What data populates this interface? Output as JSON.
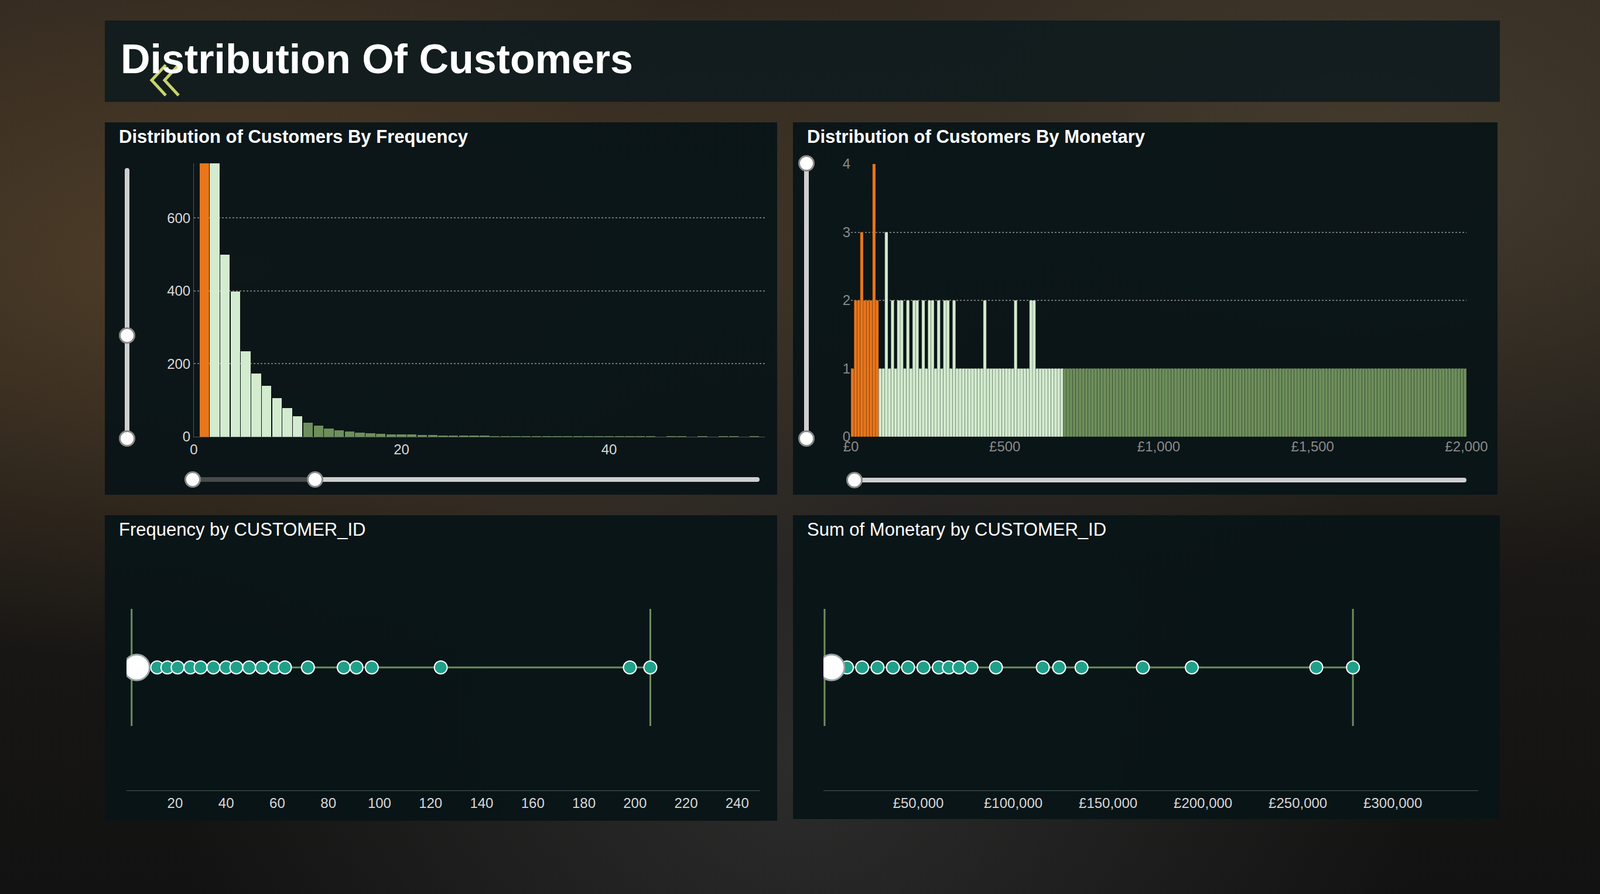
{
  "title": "Distribution Of Customers",
  "chart_data": [
    {
      "type": "bar",
      "title": "Distribution of Customers By Frequency",
      "xlim": [
        0,
        55
      ],
      "xticks": [
        0,
        20,
        40
      ],
      "ylim": [
        0,
        750
      ],
      "yticks": [
        0,
        200,
        400,
        600
      ],
      "grid": true,
      "series": [
        {
          "color": "#e8761c",
          "x": [
            1
          ],
          "values": [
            750
          ]
        },
        {
          "color": "#d3ebcf",
          "x": [
            2,
            3,
            4,
            5,
            6,
            7,
            8,
            9,
            10
          ],
          "values": [
            750,
            500,
            399,
            234,
            173,
            140,
            106,
            78,
            56
          ]
        },
        {
          "color": "#6e8f5c",
          "x": [
            11,
            12,
            13,
            14,
            15,
            16,
            17,
            18,
            19,
            20,
            21,
            22,
            23,
            24,
            25,
            26,
            27,
            28,
            29,
            30,
            31,
            32,
            33,
            34,
            35,
            36,
            37,
            38,
            39,
            40,
            41,
            42,
            43,
            44,
            45,
            46,
            47,
            48,
            49,
            50,
            51,
            52,
            53,
            54
          ],
          "values": [
            39,
            30,
            22,
            17,
            14,
            12,
            10,
            8,
            7,
            7,
            6,
            5,
            5,
            4,
            4,
            3,
            3,
            3,
            2,
            2,
            2,
            2,
            2,
            1,
            2,
            1,
            1,
            2,
            1,
            1,
            1,
            1,
            1,
            1,
            0,
            1,
            1,
            0,
            1,
            0,
            1,
            1,
            0,
            1
          ]
        }
      ]
    },
    {
      "type": "bar",
      "title": "Distribution of Customers By Monetary",
      "xlim": [
        0,
        2000
      ],
      "xticks": [
        {
          "value": 0,
          "label": "£0"
        },
        {
          "value": 500,
          "label": "£500"
        },
        {
          "value": 1000,
          "label": "£1,000"
        },
        {
          "value": 1500,
          "label": "£1,500"
        },
        {
          "value": 2000,
          "label": "£2,000"
        }
      ],
      "ylim": [
        0,
        4
      ],
      "yticks": [
        0,
        1,
        2,
        3,
        4
      ],
      "grid": true,
      "series": [
        {
          "color": "#e8761c",
          "x": [
            5,
            15,
            25,
            35,
            45,
            55,
            65,
            75,
            85
          ],
          "values": [
            1,
            2,
            2,
            3,
            2,
            2,
            2,
            4,
            2
          ]
        },
        {
          "color": "#d3ebcf",
          "x": [
            95,
            105,
            115,
            125,
            135,
            145,
            155,
            165,
            175,
            185,
            195,
            205,
            215,
            225,
            235,
            245,
            255,
            265,
            275,
            285,
            295,
            305,
            315,
            325,
            335,
            345,
            355,
            365,
            375,
            385,
            395,
            405,
            415,
            425,
            435,
            445,
            455,
            465,
            475,
            485,
            495,
            505,
            515,
            525,
            535,
            545,
            555,
            565,
            575,
            585,
            595,
            605,
            615,
            625,
            635,
            645,
            655,
            665,
            675,
            685
          ],
          "values": [
            1,
            1,
            3,
            1,
            2,
            1,
            2,
            2,
            1,
            2,
            1,
            2,
            2,
            1,
            2,
            1,
            2,
            2,
            1,
            2,
            1,
            2,
            2,
            1,
            2,
            1,
            1,
            1,
            1,
            1,
            1,
            1,
            1,
            1,
            2,
            1,
            1,
            1,
            1,
            1,
            1,
            1,
            1,
            1,
            2,
            1,
            1,
            1,
            1,
            2,
            2,
            1,
            1,
            1,
            1,
            1,
            1,
            1,
            1,
            1
          ]
        },
        {
          "color": "#6e8f5c",
          "x": [
            695,
            705,
            715,
            725,
            735,
            745,
            755,
            765,
            775,
            785,
            795,
            805,
            815,
            825,
            835,
            845,
            855,
            865,
            875,
            885,
            895,
            905,
            915,
            925,
            935,
            945,
            955,
            965,
            975,
            985,
            995,
            1005,
            1015,
            1025,
            1035,
            1045,
            1055,
            1065,
            1075,
            1085,
            1095,
            1105,
            1115,
            1125,
            1135,
            1145,
            1155,
            1165,
            1175,
            1185,
            1195,
            1205,
            1215,
            1225,
            1235,
            1245,
            1255,
            1265,
            1275,
            1285,
            1295,
            1305,
            1315,
            1325,
            1335,
            1345,
            1355,
            1365,
            1375,
            1385,
            1395,
            1405,
            1415,
            1425,
            1435,
            1445,
            1455,
            1465,
            1475,
            1485,
            1495,
            1505,
            1515,
            1525,
            1535,
            1545,
            1555,
            1565,
            1575,
            1585,
            1595,
            1605,
            1615,
            1625,
            1635,
            1645,
            1655,
            1665,
            1675,
            1685,
            1695,
            1705,
            1715,
            1725,
            1735,
            1745,
            1755,
            1765,
            1775,
            1785,
            1795,
            1805,
            1815,
            1825,
            1835,
            1845,
            1855,
            1865,
            1875,
            1885,
            1895,
            1905,
            1915,
            1925,
            1935,
            1945,
            1955,
            1965,
            1975,
            1985,
            1995
          ],
          "values": [
            1,
            1,
            1,
            1,
            1,
            1,
            1,
            1,
            1,
            1,
            1,
            1,
            1,
            1,
            1,
            1,
            1,
            1,
            1,
            1,
            1,
            1,
            1,
            1,
            1,
            1,
            1,
            1,
            1,
            1,
            1,
            1,
            1,
            1,
            1,
            1,
            1,
            1,
            1,
            1,
            1,
            1,
            1,
            1,
            1,
            1,
            1,
            1,
            1,
            1,
            1,
            1,
            1,
            1,
            1,
            1,
            1,
            1,
            1,
            1,
            1,
            1,
            1,
            1,
            1,
            1,
            1,
            1,
            1,
            1,
            1,
            1,
            1,
            1,
            1,
            1,
            1,
            1,
            1,
            1,
            1,
            1,
            1,
            1,
            1,
            1,
            1,
            1,
            1,
            1,
            1,
            1,
            1,
            1,
            1,
            1,
            1,
            1,
            1,
            1,
            1,
            1,
            1,
            1,
            1,
            1,
            1,
            1,
            1,
            1,
            1,
            1,
            1,
            1,
            1,
            1,
            1,
            1,
            1,
            1,
            1,
            1,
            1,
            1,
            1,
            1,
            1,
            1,
            1,
            1,
            1
          ]
        }
      ]
    },
    {
      "type": "scatter",
      "title": "Frequency by CUSTOMER_ID",
      "xlim": [
        1,
        249
      ],
      "xticks": [
        20,
        40,
        60,
        80,
        100,
        120,
        140,
        160,
        180,
        200,
        220,
        240
      ],
      "tick_labels": "x",
      "grid": false,
      "series": [
        {
          "type": "range",
          "color": "#6e8f5c",
          "x": [
            3,
            206
          ]
        },
        {
          "type": "scatter",
          "marker": "circle",
          "color": "#1fa08a",
          "x": [
            13,
            17,
            21,
            26,
            30,
            35,
            40,
            44,
            49,
            54,
            59,
            63,
            72,
            86,
            91,
            97,
            124,
            198,
            206
          ]
        },
        {
          "type": "scatter",
          "marker": "big-circle",
          "color": "#ffffff",
          "x": [
            5
          ]
        }
      ]
    },
    {
      "type": "scatter",
      "title": "Sum of Monetary by CUSTOMER_ID",
      "xlim": [
        0,
        345000
      ],
      "xticks": [
        {
          "value": 50000,
          "label": "£50,000"
        },
        {
          "value": 100000,
          "label": "£100,000"
        },
        {
          "value": 150000,
          "label": "£150,000"
        },
        {
          "value": 200000,
          "label": "£200,000"
        },
        {
          "value": 250000,
          "label": "£250,000"
        },
        {
          "value": 300000,
          "label": "£300,000"
        }
      ],
      "tick_labels": "x",
      "grid": false,
      "series": [
        {
          "type": "range",
          "color": "#6e8f5c",
          "x": [
            600,
            279000
          ]
        },
        {
          "type": "scatter",
          "marker": "circle",
          "color": "#1fa08a",
          "x": [
            12400,
            20400,
            28500,
            36600,
            44600,
            52700,
            60800,
            66100,
            71500,
            78000,
            90900,
            115600,
            124200,
            136000,
            168300,
            194100,
            259700,
            279000
          ]
        },
        {
          "type": "scatter",
          "marker": "big-circle",
          "color": "#ffffff",
          "x": [
            4300
          ]
        }
      ]
    }
  ]
}
